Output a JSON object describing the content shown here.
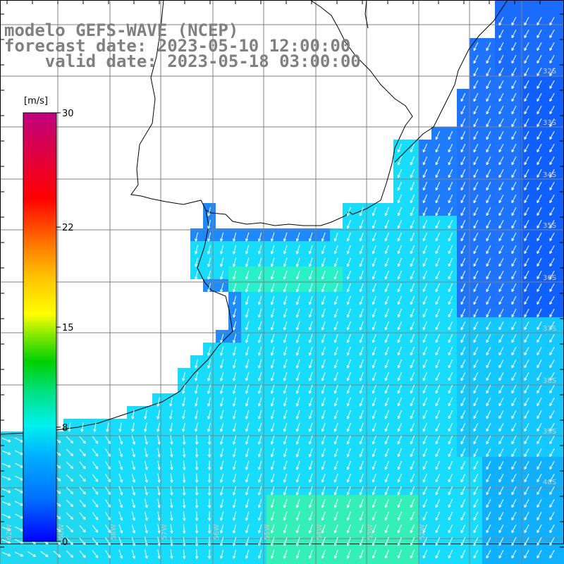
{
  "header": {
    "line1": "modelo GEFS-WAVE (NCEP)",
    "line2": "forecast date: 2023-05-10 12:00:00",
    "line3": "    valid date: 2023-05-18 03:00:00"
  },
  "colorbar": {
    "unit": "[m/s]",
    "ticks": [
      "30",
      "22",
      "15",
      "8",
      "0"
    ],
    "tick_values": [
      30,
      22,
      15,
      8,
      0
    ],
    "colors": [
      "#0000ff",
      "#0070ff",
      "#00c8ff",
      "#00ffe0",
      "#00e070",
      "#00d000",
      "#60e000",
      "#c0f000",
      "#ffff00",
      "#ffc000",
      "#ff8000",
      "#ff3000",
      "#ff0000",
      "#e00040",
      "#c00080"
    ]
  },
  "lat_labels": [
    "32S",
    "33S",
    "34S",
    "35S",
    "36S",
    "37S",
    "38S",
    "39S",
    "40S"
  ],
  "lat_values": [
    -32,
    -33,
    -34,
    -35,
    -36,
    -37,
    -38,
    -39,
    -40
  ],
  "lon_labels": [
    "62W",
    "60W",
    "58W",
    "57W",
    "56W",
    "55W",
    "54W",
    "53W",
    "52W"
  ],
  "lon_values": [
    -62,
    -60,
    -58,
    -57,
    -56,
    -55,
    -54,
    -53,
    -52
  ],
  "field": {
    "variable": "wind speed",
    "units": "m/s",
    "wind_direction": "southward / south-southwest",
    "typical_speed_range": [
      4,
      14
    ]
  }
}
